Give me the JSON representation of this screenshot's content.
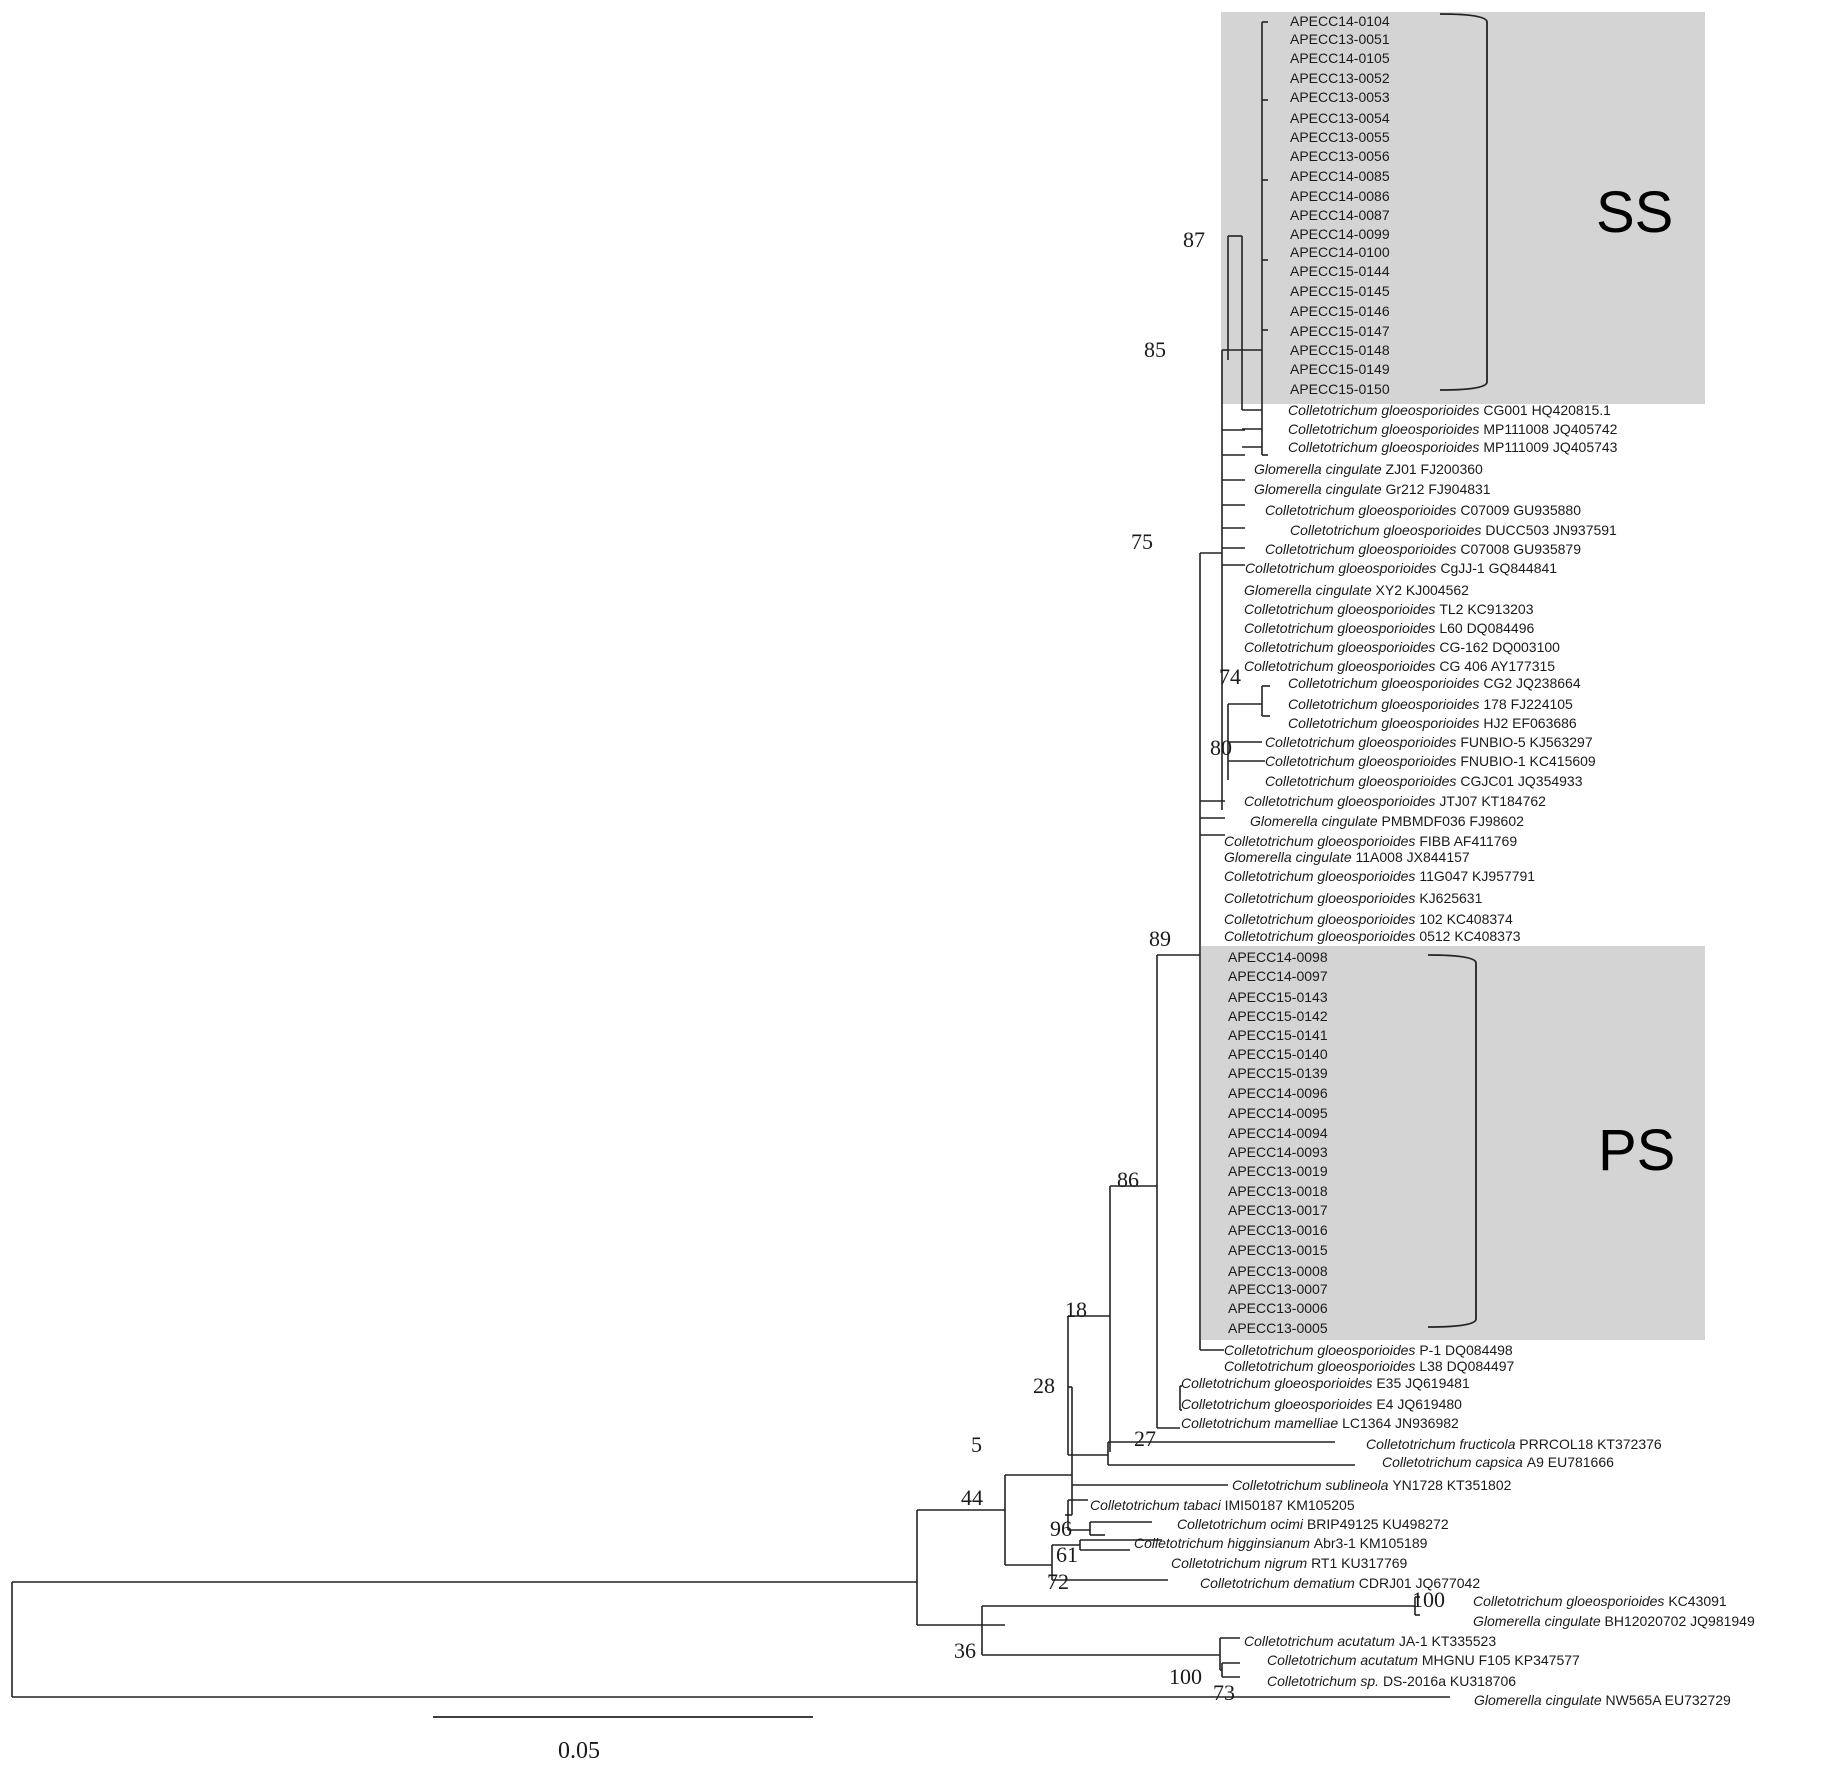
{
  "groups": {
    "ss": {
      "label": "SS",
      "shade": "#d4d4d4"
    },
    "ps": {
      "label": "PS",
      "shade": "#d4d4d4"
    }
  },
  "scale_bar": {
    "label": "0.05",
    "length": 0.05
  },
  "ss_taxa": [
    "APECC14-0104",
    "APECC13-0051",
    "APECC14-0105",
    "APECC13-0052",
    "APECC13-0053",
    "APECC13-0054",
    "APECC13-0055",
    "APECC13-0056",
    "APECC14-0085",
    "APECC14-0086",
    "APECC14-0087",
    "APECC14-0099",
    "APECC14-0100",
    "APECC15-0144",
    "APECC15-0145",
    "APECC15-0146",
    "APECC15-0147",
    "APECC15-0148",
    "APECC15-0149",
    "APECC15-0150"
  ],
  "mid_taxa": [
    {
      "sp": "Colletotrichum gloeosporioides",
      "acc": "CG001 HQ420815.1"
    },
    {
      "sp": "Colletotrichum gloeosporioides",
      "acc": "MP111008 JQ405742"
    },
    {
      "sp": "Colletotrichum gloeosporioides",
      "acc": "MP111009 JQ405743"
    },
    {
      "sp": "Glomerella cingulate",
      "acc": "ZJ01 FJ200360"
    },
    {
      "sp": "Glomerella cingulate",
      "acc": "Gr212 FJ904831"
    },
    {
      "sp": "Colletotrichum gloeosporioides",
      "acc": "C07009 GU935880"
    },
    {
      "sp": "Colletotrichum gloeosporioides",
      "acc": "DUCC503 JN937591"
    },
    {
      "sp": "Colletotrichum gloeosporioides",
      "acc": "C07008 GU935879"
    },
    {
      "sp": "Colletotrichum gloeosporioides",
      "acc": "CgJJ-1 GQ844841"
    },
    {
      "sp": "Glomerella cingulate",
      "acc": "XY2 KJ004562"
    },
    {
      "sp": "Colletotrichum gloeosporioides",
      "acc": "TL2 KC913203"
    },
    {
      "sp": "Colletotrichum gloeosporioides",
      "acc": "L60 DQ084496"
    },
    {
      "sp": "Colletotrichum gloeosporioides",
      "acc": "CG-162 DQ003100"
    },
    {
      "sp": "Colletotrichum gloeosporioides",
      "acc": "CG 406 AY177315"
    },
    {
      "sp": "Colletotrichum gloeosporioides",
      "acc": "CG2 JQ238664"
    },
    {
      "sp": "Colletotrichum gloeosporioides",
      "acc": "178 FJ224105"
    },
    {
      "sp": "Colletotrichum gloeosporioides",
      "acc": "HJ2 EF063686"
    },
    {
      "sp": "Colletotrichum gloeosporioides",
      "acc": "FUNBIO-5 KJ563297"
    },
    {
      "sp": "Colletotrichum gloeosporioides",
      "acc": "FNUBIO-1 KC415609"
    },
    {
      "sp": "Colletotrichum gloeosporioides",
      "acc": "CGJC01 JQ354933"
    },
    {
      "sp": "Colletotrichum gloeosporioides",
      "acc": "JTJ07 KT184762"
    },
    {
      "sp": "Glomerella cingulate",
      "acc": "PMBMDF036 FJ98602"
    },
    {
      "sp": "Colletotrichum gloeosporioides",
      "acc": "FIBB AF411769"
    },
    {
      "sp": "Glomerella cingulate",
      "acc": "11A008 JX844157"
    },
    {
      "sp": "Colletotrichum gloeosporioides",
      "acc": "11G047 KJ957791"
    },
    {
      "sp": "Colletotrichum gloeosporioides",
      "acc": "KJ625631"
    },
    {
      "sp": "Colletotrichum gloeosporioides",
      "acc": "102 KC408374"
    },
    {
      "sp": "Colletotrichum gloeosporioides",
      "acc": "0512 KC408373"
    }
  ],
  "ps_taxa": [
    "APECC14-0098",
    "APECC14-0097",
    "APECC15-0143",
    "APECC15-0142",
    "APECC15-0141",
    "APECC15-0140",
    "APECC15-0139",
    "APECC14-0096",
    "APECC14-0095",
    "APECC14-0094",
    "APECC14-0093",
    "APECC13-0019",
    "APECC13-0018",
    "APECC13-0017",
    "APECC13-0016",
    "APECC13-0015",
    "APECC13-0008",
    "APECC13-0007",
    "APECC13-0006",
    "APECC13-0005"
  ],
  "low_taxa": [
    {
      "sp": "Colletotrichum gloeosporioides",
      "acc": "P-1 DQ084498"
    },
    {
      "sp": "Colletotrichum gloeosporioides",
      "acc": "L38 DQ084497"
    },
    {
      "sp": "Colletotrichum gloeosporioides",
      "acc": "E35 JQ619481"
    },
    {
      "sp": "Colletotrichum gloeosporioides",
      "acc": "E4 JQ619480"
    },
    {
      "sp": "Colletotrichum mamelliae",
      "acc": "LC1364 JN936982"
    },
    {
      "sp": "Colletotrichum fructicola",
      "acc": "PRRCOL18 KT372376"
    },
    {
      "sp": "Colletotrichum capsica",
      "acc": "A9 EU781666"
    },
    {
      "sp": "Colletotrichum sublineola",
      "acc": "YN1728 KT351802"
    },
    {
      "sp": "Colletotrichum tabaci",
      "acc": "IMI50187 KM105205"
    },
    {
      "sp": "Colletotrichum ocimi",
      "acc": "BRIP49125 KU498272"
    },
    {
      "sp": "Colletotrichum higginsianum",
      "acc": "Abr3-1 KM105189"
    },
    {
      "sp": "Colletotrichum nigrum",
      "acc": "RT1 KU317769"
    },
    {
      "sp": "Colletotrichum dematium",
      "acc": "CDRJ01 JQ677042"
    },
    {
      "sp": "Colletotrichum gloeosporioides",
      "acc": "KC43091"
    },
    {
      "sp": "Glomerella cingulate",
      "acc": "BH12020702 JQ981949"
    },
    {
      "sp": "Colletotrichum acutatum",
      "acc": "JA-1 KT335523"
    },
    {
      "sp": "Colletotrichum acutatum",
      "acc": "MHGNU  F105 KP347577"
    },
    {
      "sp": "Colletotrichum sp.",
      "acc": "DS-2016a KU318706"
    },
    {
      "sp": "Glomerella cingulate",
      "acc": "NW565A EU732729"
    }
  ],
  "bootstrap": [
    "87",
    "85",
    "75",
    "74",
    "80",
    "89",
    "86",
    "18",
    "28",
    "27",
    "5",
    "44",
    "96",
    "61",
    "72",
    "100",
    "36",
    "100",
    "73"
  ]
}
